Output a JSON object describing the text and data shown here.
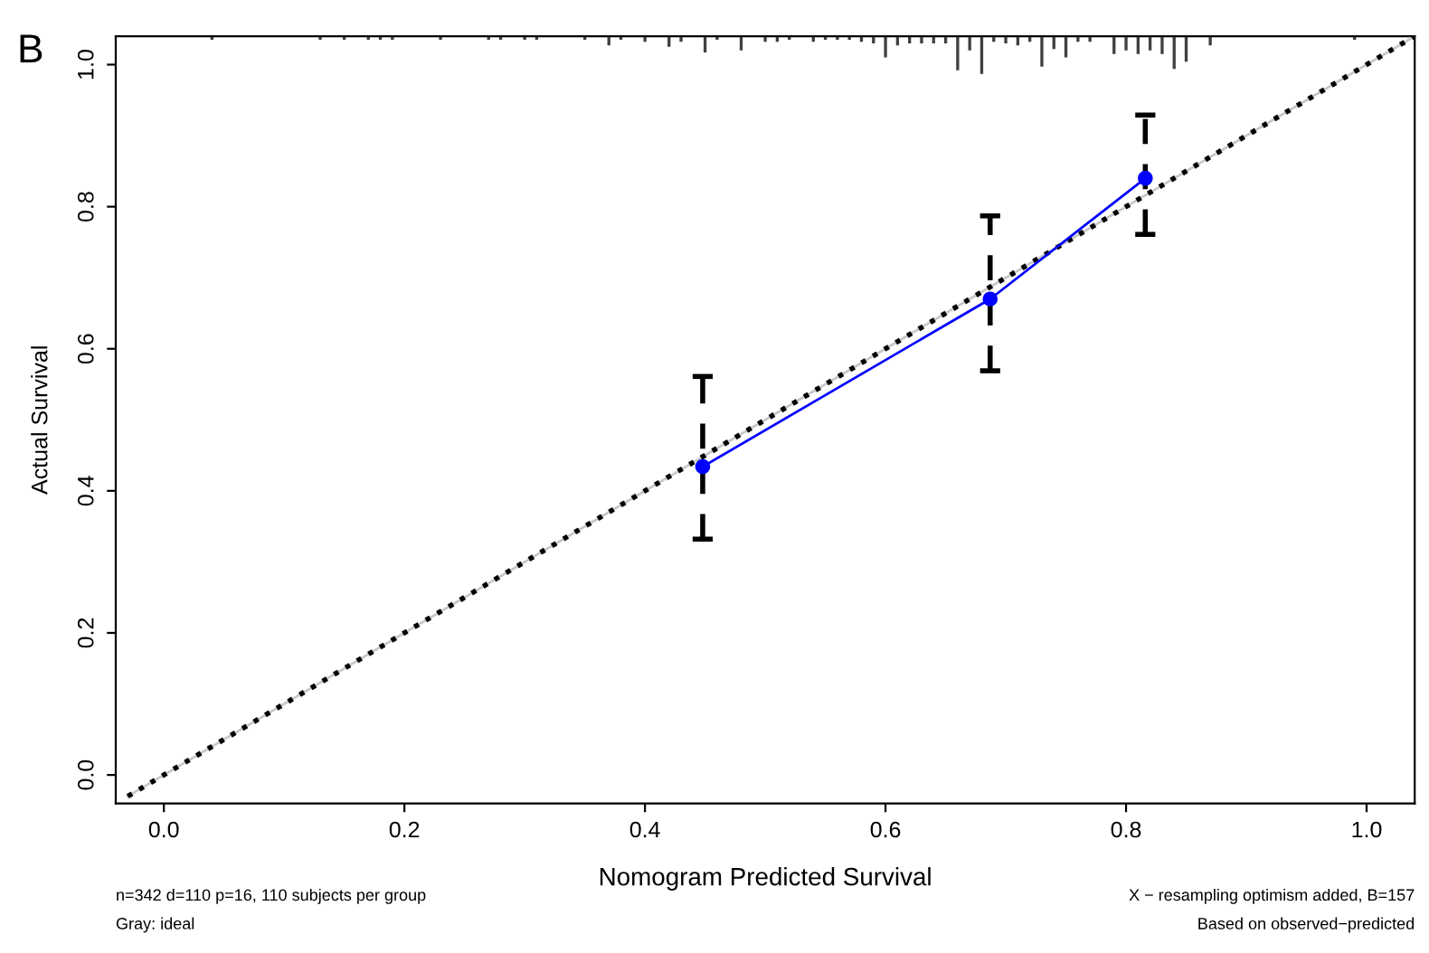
{
  "chart_data": {
    "type": "line",
    "title": "B",
    "xlabel": "Nomogram Predicted Survival",
    "ylabel": "Actual Survival",
    "xlim": [
      -0.04,
      1.04
    ],
    "ylim": [
      -0.04,
      1.04
    ],
    "xticks": [
      {
        "value": 0,
        "label": "0.0"
      },
      {
        "value": 0.2,
        "label": "0.2"
      },
      {
        "value": 0.4,
        "label": "0.4"
      },
      {
        "value": 0.6,
        "label": "0.6"
      },
      {
        "value": 0.8,
        "label": "0.8"
      },
      {
        "value": 1,
        "label": "1.0"
      }
    ],
    "yticks": [
      {
        "value": 0,
        "label": "0.0"
      },
      {
        "value": 0.2,
        "label": "0.2"
      },
      {
        "value": 0.4,
        "label": "0.4"
      },
      {
        "value": 0.6,
        "label": "0.6"
      },
      {
        "value": 0.8,
        "label": "0.8"
      },
      {
        "value": 1,
        "label": "1.0"
      }
    ],
    "grid": false,
    "series": [
      {
        "color": "#c8c8c8",
        "line_style": "solid",
        "marker": "none",
        "x": [
          -0.03,
          1.04
        ],
        "values": [
          -0.03,
          1.04
        ]
      },
      {
        "color": "#000000",
        "line_style": "dotted",
        "marker": "none",
        "x": [
          -0.03,
          1.04
        ],
        "values": [
          -0.03,
          1.04
        ]
      },
      {
        "color": "#0000ff",
        "line_style": "solid",
        "marker": "circle",
        "x": [
          0.448,
          0.687,
          0.816
        ],
        "values": [
          0.434,
          0.67,
          0.84
        ],
        "errors": [
          [
            0.332,
            0.561
          ],
          [
            0.569,
            0.787
          ],
          [
            0.761,
            0.929
          ]
        ]
      },
      {
        "type": "bar",
        "color": "#404040",
        "x": [
          0.04,
          0.13,
          0.15,
          0.17,
          0.18,
          0.19,
          0.23,
          0.27,
          0.28,
          0.3,
          0.31,
          0.35,
          0.37,
          0.38,
          0.4,
          0.42,
          0.43,
          0.45,
          0.46,
          0.48,
          0.5,
          0.51,
          0.52,
          0.54,
          0.55,
          0.56,
          0.57,
          0.58,
          0.59,
          0.6,
          0.61,
          0.62,
          0.63,
          0.64,
          0.65,
          0.66,
          0.67,
          0.68,
          0.69,
          0.7,
          0.71,
          0.72,
          0.73,
          0.74,
          0.75,
          0.76,
          0.77,
          0.79,
          0.8,
          0.81,
          0.82,
          0.83,
          0.84,
          0.85,
          0.87,
          0.99
        ],
        "values": [
          0.005,
          0.005,
          0.005,
          0.005,
          0.005,
          0.005,
          0.005,
          0.005,
          0.005,
          0.005,
          0.005,
          0.005,
          0.013,
          0.005,
          0.008,
          0.015,
          0.008,
          0.023,
          0.005,
          0.02,
          0.008,
          0.008,
          0.005,
          0.008,
          0.005,
          0.005,
          0.005,
          0.008,
          0.01,
          0.03,
          0.013,
          0.01,
          0.01,
          0.01,
          0.01,
          0.048,
          0.02,
          0.053,
          0.008,
          0.01,
          0.013,
          0.008,
          0.043,
          0.018,
          0.03,
          0.008,
          0.008,
          0.025,
          0.02,
          0.025,
          0.02,
          0.025,
          0.046,
          0.036,
          0.013,
          0.005
        ],
        "base": [
          1.035,
          1.035,
          1.035,
          1.035,
          1.035,
          1.035,
          1.035,
          1.035,
          1.035,
          1.035,
          1.035,
          1.035,
          1.027,
          1.035,
          1.032,
          1.025,
          1.032,
          1.017,
          1.035,
          1.02,
          1.032,
          1.032,
          1.035,
          1.032,
          1.035,
          1.035,
          1.035,
          1.032,
          1.03,
          1.01,
          1.027,
          1.03,
          1.03,
          1.03,
          1.03,
          0.992,
          1.02,
          0.987,
          1.032,
          1.03,
          1.027,
          1.032,
          0.997,
          1.022,
          1.01,
          1.032,
          1.032,
          1.015,
          1.02,
          1.015,
          1.02,
          1.015,
          0.994,
          1.004,
          1.027,
          1.035
        ]
      }
    ],
    "annotations": [
      "n=342 d=110 p=16, 110 subjects per group",
      "Gray: ideal",
      "X − resampling optimism added, B=157",
      "Based on observed−predicted"
    ]
  }
}
